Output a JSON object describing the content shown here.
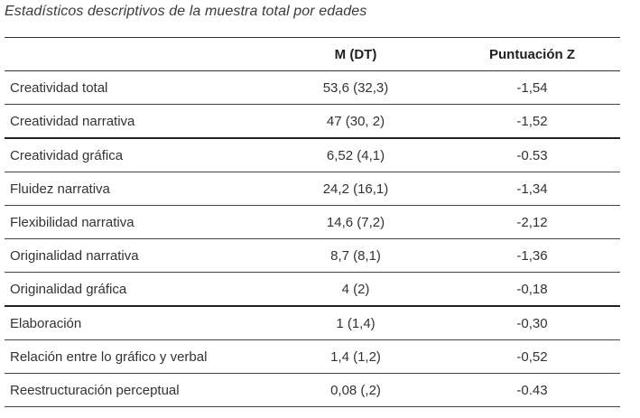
{
  "caption": "Estadísticos descriptivos de la muestra total por edades",
  "table": {
    "headers": [
      "",
      "M (DT)",
      "Puntuación Z"
    ],
    "rows": [
      {
        "label": "Creatividad total",
        "m_dt": "53,6 (32,3)",
        "z": "-1,54"
      },
      {
        "label": "Creatividad narrativa",
        "m_dt": "47 (30, 2)",
        "z": "-1,52"
      },
      {
        "label": "Creatividad gráfica",
        "m_dt": "6,52 (4,1)",
        "z": "-0.53"
      },
      {
        "label": "Fluidez narrativa",
        "m_dt": "24,2 (16,1)",
        "z": "-1,34"
      },
      {
        "label": "Flexibilidad narrativa",
        "m_dt": "14,6 (7,2)",
        "z": "-2,12"
      },
      {
        "label": "Originalidad narrativa",
        "m_dt": "8,7 (8,1)",
        "z": "-1,36"
      },
      {
        "label": "Originalidad gráfica",
        "m_dt": "4 (2)",
        "z": "-0,18"
      },
      {
        "label": "Elaboración",
        "m_dt": "1 (1,4)",
        "z": "-0,30"
      },
      {
        "label": "Relación entre lo gráfico y verbal",
        "m_dt": "1,4 (1,2)",
        "z": "-0,52"
      },
      {
        "label": "Reestructuración perceptual",
        "m_dt": "0,08 (,2)",
        "z": "-0.43"
      }
    ]
  }
}
